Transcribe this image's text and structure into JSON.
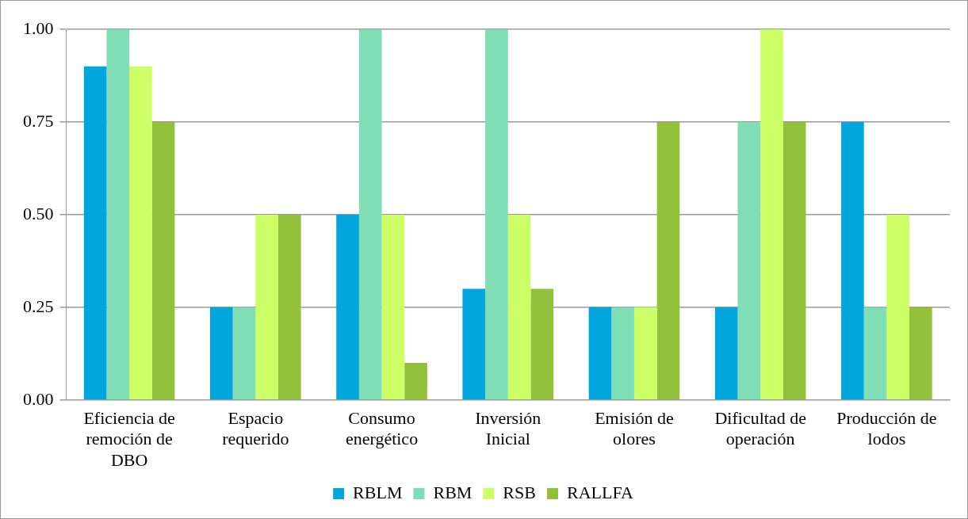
{
  "chart_data": {
    "type": "bar",
    "categories": [
      "Eficiencia de remoción de DBO",
      "Espacio requerido",
      "Consumo energético",
      "Inversión Inicial",
      "Emisión de olores",
      "Dificultad de operación",
      "Producción de lodos"
    ],
    "series": [
      {
        "name": "RBLM",
        "color": "#00a6dd",
        "values": [
          0.9,
          0.25,
          0.5,
          0.3,
          0.25,
          0.25,
          0.75
        ]
      },
      {
        "name": "RBM",
        "color": "#7fdeb6",
        "values": [
          1.0,
          0.25,
          1.0,
          1.0,
          0.25,
          0.75,
          0.25
        ]
      },
      {
        "name": "RSB",
        "color": "#ccff66",
        "values": [
          0.9,
          0.5,
          0.5,
          0.5,
          0.25,
          1.0,
          0.5
        ]
      },
      {
        "name": "RALLFA",
        "color": "#92c03a",
        "values": [
          0.75,
          0.5,
          0.1,
          0.3,
          0.75,
          0.75,
          0.25
        ]
      }
    ],
    "ylim": [
      0,
      1
    ],
    "yticks": [
      {
        "value": 0,
        "label": "0.00"
      },
      {
        "value": 0.25,
        "label": "0.25"
      },
      {
        "value": 0.5,
        "label": "0.50"
      },
      {
        "value": 0.75,
        "label": "0.75"
      },
      {
        "value": 1,
        "label": "1.00"
      }
    ],
    "grid": "y",
    "legend": "bottom"
  }
}
